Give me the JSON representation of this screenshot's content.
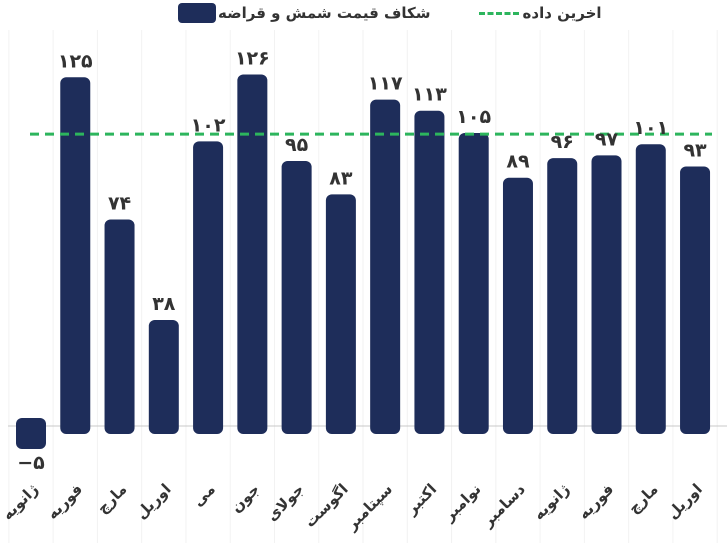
{
  "legend": {
    "bars_label": "شکاف قیمت شمش و قراضه",
    "line_label": "اخرین داده"
  },
  "colors": {
    "bar": "#1e2d5a",
    "reference_line": "#2db55d",
    "zero_line": "#c8c8c8",
    "grid": "#f2f2f2",
    "text": "#333333"
  },
  "chart_data": {
    "type": "bar",
    "title": "",
    "xlabel": "",
    "ylabel": "",
    "categories": [
      "ژانویه",
      "فوریه",
      "مارچ",
      "اوریل",
      "می",
      "جون",
      "جولای",
      "اگوست",
      "سپتامبر",
      "اکتبر",
      "نوامبر",
      "دسامبر",
      "ژانویه",
      "فوریه",
      "مارچ",
      "اوریل"
    ],
    "series": [
      {
        "name": "شکاف قیمت شمش و قراضه",
        "values": [
          -5,
          125,
          74,
          38,
          102,
          126,
          95,
          83,
          117,
          113,
          105,
          89,
          96,
          97,
          101,
          93
        ]
      }
    ],
    "value_labels": [
      "−۵",
      "۱۲۵",
      "۷۴",
      "۳۸",
      "۱۰۲",
      "۱۲۶",
      "۹۵",
      "۸۳",
      "۱۱۷",
      "۱۱۳",
      "۱۰۵",
      "۸۹",
      "۹۶",
      "۹۷",
      "۱۰۱",
      "۹۳"
    ],
    "reference_line": {
      "name": "اخرین داده",
      "value": 104.6,
      "style": "dashed"
    },
    "ylim": [
      -8,
      135
    ],
    "grid": true,
    "legend_position": "top"
  }
}
